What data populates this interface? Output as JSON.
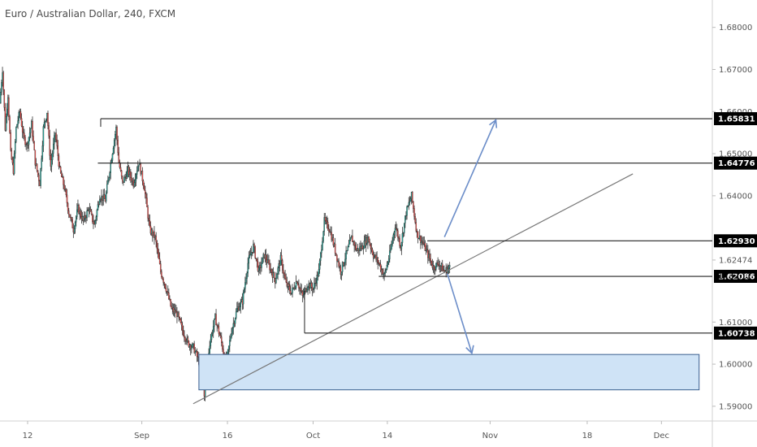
{
  "chart_data": {
    "type": "candlestick",
    "title": "Euro / Australian Dollar, 240, FXCM",
    "ylim": [
      1.5865,
      1.6865
    ],
    "yticks": [
      "1.68000",
      "1.67000",
      "1.66000",
      "1.65000",
      "1.64000",
      "1.62474",
      "1.61000",
      "1.60000",
      "1.59000"
    ],
    "ytick_values": [
      1.68,
      1.67,
      1.66,
      1.65,
      1.64,
      1.62474,
      1.61,
      1.6,
      1.59
    ],
    "xticks": [
      {
        "label": "12",
        "day": 0
      },
      {
        "label": "Sep",
        "day": 20
      },
      {
        "label": "16",
        "day": 35
      },
      {
        "label": "Oct",
        "day": 50
      },
      {
        "label": "14",
        "day": 63
      },
      {
        "label": "Nov",
        "day": 81
      },
      {
        "label": "18",
        "day": 98
      },
      {
        "label": "Dec",
        "day": 111
      }
    ],
    "price_path": [
      [
        -4.5,
        1.662
      ],
      [
        -4.0,
        1.67
      ],
      [
        -3.6,
        1.656
      ],
      [
        -3.2,
        1.664
      ],
      [
        -2.8,
        1.65
      ],
      [
        -2.3,
        1.646
      ],
      [
        -1.8,
        1.656
      ],
      [
        -1.2,
        1.66
      ],
      [
        -0.6,
        1.654
      ],
      [
        0.0,
        1.652
      ],
      [
        0.8,
        1.657
      ],
      [
        1.5,
        1.648
      ],
      [
        2.3,
        1.643
      ],
      [
        3.0,
        1.656
      ],
      [
        3.6,
        1.66
      ],
      [
        4.2,
        1.647
      ],
      [
        5.0,
        1.655
      ],
      [
        5.8,
        1.646
      ],
      [
        6.6,
        1.642
      ],
      [
        7.4,
        1.636
      ],
      [
        8.2,
        1.632
      ],
      [
        9.0,
        1.637
      ],
      [
        10.0,
        1.634
      ],
      [
        11.0,
        1.637
      ],
      [
        12.0,
        1.633
      ],
      [
        13.0,
        1.64
      ],
      [
        14.0,
        1.639
      ],
      [
        12.5,
        1.652
      ],
      [
        12.8,
        1.656
      ],
      [
        13.3,
        1.648
      ],
      [
        14.0,
        1.643
      ],
      [
        15.0,
        1.646
      ],
      [
        16.0,
        1.643
      ],
      [
        17.0,
        1.648
      ],
      [
        18.0,
        1.642
      ],
      [
        19.0,
        1.632
      ],
      [
        20.0,
        1.63
      ],
      [
        21.0,
        1.622
      ],
      [
        22.0,
        1.618
      ],
      [
        23.0,
        1.613
      ],
      [
        24.0,
        1.612
      ],
      [
        25.0,
        1.608
      ],
      [
        26.0,
        1.605
      ],
      [
        27.0,
        1.604
      ],
      [
        28.5,
        1.599
      ],
      [
        29.0,
        1.593
      ],
      [
        30.0,
        1.605
      ],
      [
        31.0,
        1.611
      ],
      [
        32.0,
        1.606
      ],
      [
        33.0,
        1.6
      ],
      [
        34.0,
        1.608
      ],
      [
        35.0,
        1.613
      ],
      [
        36.0,
        1.615
      ],
      [
        37.0,
        1.624
      ],
      [
        38.0,
        1.628
      ],
      [
        39.0,
        1.622
      ],
      [
        40.0,
        1.626
      ],
      [
        41.0,
        1.623
      ],
      [
        42.0,
        1.62
      ],
      [
        43.0,
        1.625
      ],
      [
        44.0,
        1.619
      ],
      [
        45.0,
        1.617
      ],
      [
        46.0,
        1.62
      ],
      [
        47.0,
        1.616
      ],
      [
        48.0,
        1.619
      ],
      [
        49.0,
        1.618
      ],
      [
        50.0,
        1.622
      ],
      [
        51.0,
        1.634
      ],
      [
        52.0,
        1.632
      ],
      [
        53.0,
        1.627
      ],
      [
        54.0,
        1.622
      ],
      [
        55.0,
        1.626
      ],
      [
        56.0,
        1.63
      ],
      [
        57.0,
        1.627
      ],
      [
        58.0,
        1.628
      ],
      [
        59.0,
        1.63
      ],
      [
        60.0,
        1.626
      ],
      [
        61.0,
        1.624
      ],
      [
        62.0,
        1.621
      ],
      [
        63.0,
        1.626
      ],
      [
        64.0,
        1.633
      ],
      [
        65.0,
        1.628
      ],
      [
        66.0,
        1.636
      ],
      [
        67.0,
        1.64
      ],
      [
        68.0,
        1.631
      ],
      [
        69.0,
        1.629
      ],
      [
        70.0,
        1.626
      ],
      [
        71.0,
        1.623
      ],
      [
        72.0,
        1.624
      ],
      [
        73.0,
        1.622
      ],
      [
        74.0,
        1.623
      ]
    ],
    "levels": [
      {
        "value": 1.65831,
        "label": "1.65831",
        "x_start_day": 12.8
      },
      {
        "value": 1.64776,
        "label": "1.64776",
        "x_start_day": 12.3
      },
      {
        "value": 1.6293,
        "label": "1.62930",
        "x_start_day": 70.0
      },
      {
        "value": 1.62086,
        "label": "1.62086",
        "x_start_day": 61.5
      },
      {
        "value": 1.60738,
        "label": "1.60738",
        "x_start_day": 48.5
      }
    ],
    "current_price": {
      "value": 1.62474,
      "countdown": "1. 32:12"
    },
    "zone": {
      "from_day": 30.0,
      "to_day": 117.6,
      "low": 1.5939,
      "high": 1.6023
    },
    "trendline": {
      "from": [
        29.0,
        1.5906
      ],
      "to": [
        106.0,
        1.6452
      ]
    },
    "arrows": [
      {
        "from": [
          73.0,
          1.6302
        ],
        "to": [
          82.0,
          1.658
        ],
        "direction": "up"
      },
      {
        "from": [
          73.5,
          1.6215
        ],
        "to": [
          77.8,
          1.6026
        ],
        "direction": "down"
      }
    ],
    "colors": {
      "up": "#26a69a",
      "down": "#ef5350",
      "wick": "#333333",
      "zone_fill": "#cfe3f6",
      "zone_stroke": "#3a5f8f",
      "arrow": "#6c8ec9",
      "line": "#222222",
      "trend": "#777777"
    }
  }
}
